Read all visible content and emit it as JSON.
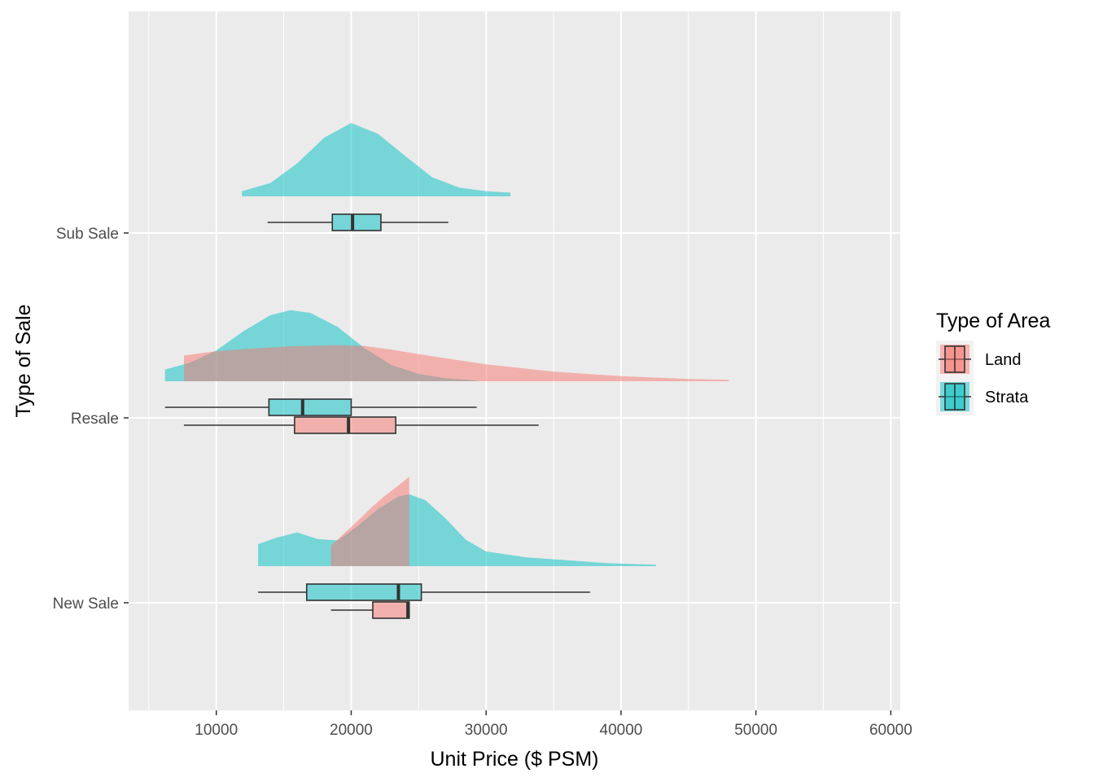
{
  "chart_data": {
    "type": "raincloud",
    "title": "",
    "xlabel": "Unit Price ($ PSM)",
    "ylabel": "Type of Sale",
    "xlim": [
      3500,
      60700
    ],
    "x_ticks": [
      10000,
      20000,
      30000,
      40000,
      50000,
      60000
    ],
    "x_tick_labels": [
      "10000",
      "20000",
      "30000",
      "40000",
      "50000",
      "60000"
    ],
    "categories": [
      "Sub Sale",
      "Resale",
      "New Sale"
    ],
    "grid": true,
    "legend": {
      "title": "Type of Area",
      "position": "right",
      "entries": [
        {
          "label": "Land",
          "color": "#F8766D"
        },
        {
          "label": "Strata",
          "color": "#00BFC4"
        }
      ]
    },
    "series": [
      {
        "name": "Strata",
        "color": "#00BFC4",
        "boxes": [
          {
            "category": "Sub Sale",
            "whisker_low": 13800,
            "q1": 18600,
            "median": 20100,
            "q3": 22200,
            "whisker_high": 27200
          },
          {
            "category": "Resale",
            "whisker_low": 6200,
            "q1": 13900,
            "median": 16400,
            "q3": 20000,
            "whisker_high": 29300
          },
          {
            "category": "New Sale",
            "whisker_low": 13100,
            "q1": 16700,
            "median": 23500,
            "q3": 25200,
            "whisker_high": 37700
          }
        ],
        "densities": [
          {
            "category": "Sub Sale",
            "x": [
              11900,
              14000,
              16000,
              18000,
              20000,
              22000,
              24000,
              26000,
              28000,
              30000,
              31800
            ],
            "height": [
              0.07,
              0.18,
              0.45,
              0.8,
              1.0,
              0.85,
              0.55,
              0.26,
              0.12,
              0.07,
              0.05
            ]
          },
          {
            "category": "Resale",
            "x": [
              6200,
              8000,
              10000,
              12000,
              14000,
              15500,
              17000,
              19000,
              21000,
              23000,
              25000,
              27000,
              29300
            ],
            "height": [
              0.16,
              0.25,
              0.42,
              0.68,
              0.9,
              0.97,
              0.93,
              0.74,
              0.45,
              0.22,
              0.1,
              0.04,
              0.01
            ]
          },
          {
            "category": "New Sale",
            "x": [
              13100,
              14500,
              16000,
              17500,
              19000,
              20500,
              22000,
              23500,
              24300,
              25500,
              27000,
              28500,
              30000,
              33000,
              36000,
              39000,
              42600
            ],
            "height": [
              0.3,
              0.39,
              0.46,
              0.37,
              0.35,
              0.55,
              0.78,
              0.95,
              0.98,
              0.9,
              0.65,
              0.36,
              0.2,
              0.12,
              0.08,
              0.04,
              0.02
            ]
          }
        ]
      },
      {
        "name": "Land",
        "color": "#F8766D",
        "boxes": [
          {
            "category": "Resale",
            "whisker_low": 7600,
            "q1": 15800,
            "median": 19800,
            "q3": 23300,
            "whisker_high": 33900
          },
          {
            "category": "New Sale",
            "whisker_low": 18500,
            "q1": 21600,
            "median": 24200,
            "q3": 24300,
            "whisker_high": 24300
          }
        ],
        "densities": [
          {
            "category": "Resale",
            "x": [
              7600,
              10000,
              13000,
              16000,
              19000,
              21000,
              23000,
              26000,
              30000,
              35000,
              40000,
              45000,
              48000
            ],
            "height": [
              0.35,
              0.41,
              0.45,
              0.48,
              0.49,
              0.48,
              0.43,
              0.34,
              0.23,
              0.13,
              0.07,
              0.03,
              0.02
            ]
          },
          {
            "category": "New Sale",
            "x": [
              18500,
              19500,
              20500,
              21500,
              22500,
              23500,
              24300
            ],
            "height": [
              0.28,
              0.45,
              0.62,
              0.8,
              0.96,
              1.1,
              1.22
            ]
          }
        ]
      }
    ]
  }
}
